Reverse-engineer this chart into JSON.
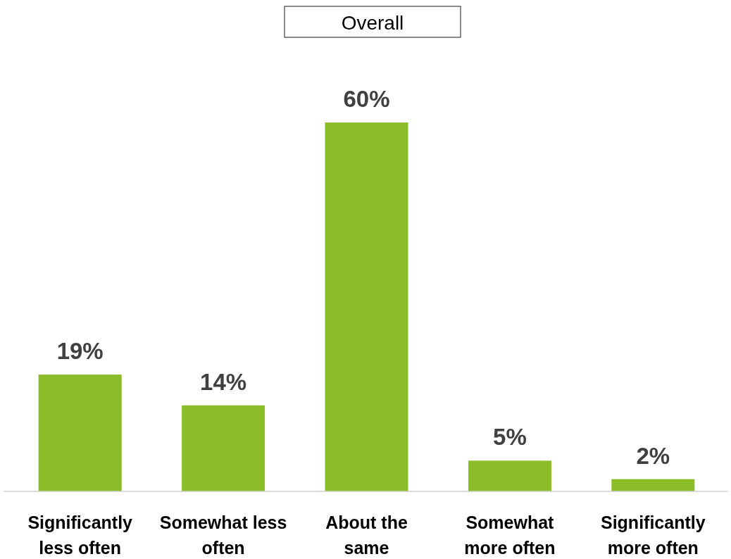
{
  "chart_data": {
    "type": "bar",
    "title": "Overall",
    "categories": [
      "Significantly less often",
      "Somewhat less often",
      "About the same",
      "Somewhat more often",
      "Significantly more often"
    ],
    "values": [
      19,
      14,
      60,
      5,
      2
    ],
    "value_labels": [
      "19%",
      "14%",
      "60%",
      "5%",
      "2%"
    ],
    "color": "#8bbd28"
  }
}
